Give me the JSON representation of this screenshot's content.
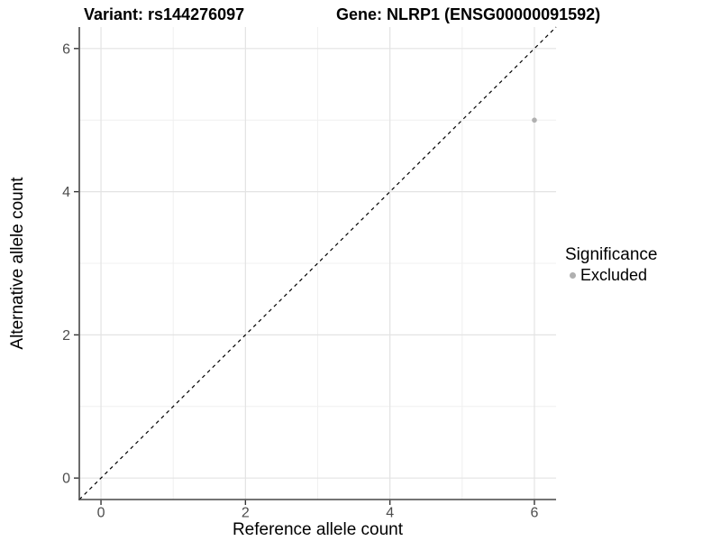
{
  "header": {
    "title_left": "Variant: rs144276097",
    "title_right": "Gene: NLRP1 (ENSG00000091592)"
  },
  "legend": {
    "title": "Significance",
    "items": [
      {
        "label": "Excluded",
        "swatch_color": "#b0b0b0"
      }
    ]
  },
  "colors": {
    "background": "#ffffff",
    "grid_major": "#e3e3e3",
    "grid_minor": "#f0f0f0",
    "axis_line": "#464646",
    "tick_mark": "#333333",
    "tick_label": "#4d4d4d",
    "point": "#b0b0b0",
    "reference_line": "#000000"
  },
  "chart_data": {
    "type": "scatter",
    "title": "Variant: rs144276097 | Gene: NLRP1 (ENSG00000091592)",
    "xlabel": "Reference allele count",
    "ylabel": "Alternative allele count",
    "xlim": [
      -0.3,
      6.3
    ],
    "ylim": [
      -0.3,
      6.3
    ],
    "x_ticks": [
      0,
      2,
      4,
      6
    ],
    "y_ticks": [
      0,
      2,
      4,
      6
    ],
    "x_minor_ticks": [
      1,
      3,
      5
    ],
    "y_minor_ticks": [
      1,
      3,
      5
    ],
    "grid": "major+minor",
    "legend_position": "right",
    "series": [
      {
        "name": "Excluded",
        "color": "#b0b0b0",
        "points": [
          {
            "x": 6,
            "y": 5
          }
        ]
      }
    ],
    "abline": {
      "slope": 1,
      "intercept": 0,
      "style": "dashed",
      "color": "#000000"
    }
  }
}
